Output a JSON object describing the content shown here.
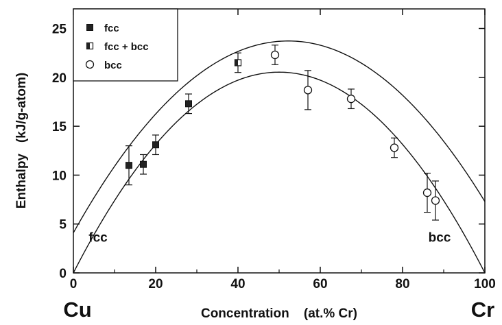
{
  "chart_data": {
    "type": "scatter",
    "xlabel": "Concentration    (at.% Cr)",
    "ylabel": "Enthalpy   (kJ/g-atom)",
    "xlim": [
      0,
      100
    ],
    "ylim": [
      0,
      27
    ],
    "x_ticks": [
      0,
      20,
      40,
      60,
      80,
      100
    ],
    "y_ticks": [
      0,
      5,
      10,
      15,
      20,
      25
    ],
    "grid": false,
    "legend_position": "top-left",
    "endpoint_labels": {
      "left": "Cu",
      "right": "Cr"
    },
    "annotations": [
      {
        "text": "fcc",
        "x": 6,
        "y": 3.2
      },
      {
        "text": "bcc",
        "x": 89,
        "y": 3.2
      }
    ],
    "series": [
      {
        "name": "fcc",
        "marker": "filled-square",
        "points": [
          {
            "x": 13.5,
            "y": 11.0,
            "err": 2.0
          },
          {
            "x": 17,
            "y": 11.1,
            "err": 1.0
          },
          {
            "x": 20,
            "y": 13.1,
            "err": 1.0
          },
          {
            "x": 28,
            "y": 17.3,
            "err": 1.0
          }
        ]
      },
      {
        "name": "fcc + bcc",
        "marker": "half-filled-square",
        "points": [
          {
            "x": 40,
            "y": 21.5,
            "err": 1.0
          }
        ]
      },
      {
        "name": "bcc",
        "marker": "open-circle",
        "points": [
          {
            "x": 49,
            "y": 22.3,
            "err": 1.0
          },
          {
            "x": 57,
            "y": 18.7,
            "err": 2.0
          },
          {
            "x": 67.5,
            "y": 17.8,
            "err": 1.0
          },
          {
            "x": 78,
            "y": 12.8,
            "err": 1.0
          },
          {
            "x": 86,
            "y": 8.2,
            "err": 2.0
          },
          {
            "x": 88,
            "y": 7.4,
            "err": 2.0
          }
        ]
      }
    ],
    "curves": [
      {
        "id": "fcc-fit",
        "peak_x": 54,
        "peak_y": 23.7,
        "y_at_0": 4.1,
        "y_at_100": 7.3
      },
      {
        "id": "bcc-fit",
        "peak_x": 46,
        "peak_y": 20.4,
        "y_at_0": 0.0,
        "y_at_100": 0.0
      }
    ]
  }
}
